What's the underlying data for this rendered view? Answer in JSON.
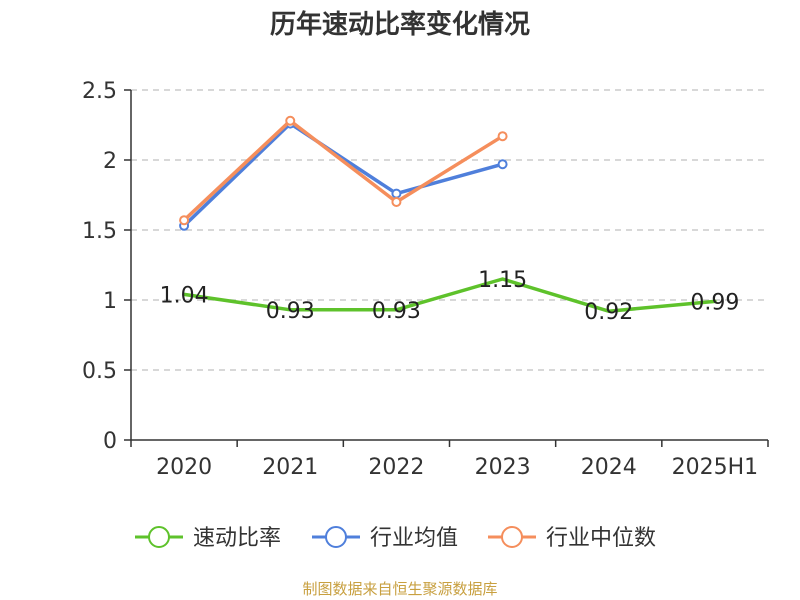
{
  "chart_data": {
    "type": "line",
    "title": "历年速动比率变化情况",
    "categories": [
      "2020",
      "2021",
      "2022",
      "2023",
      "2024",
      "2025H1"
    ],
    "ylim": [
      0,
      2.5
    ],
    "yticks": [
      "0",
      "0.5",
      "1",
      "1.5",
      "2",
      "2.5"
    ],
    "grid": true,
    "legend_position": "bottom",
    "series": [
      {
        "name": "速动比率",
        "color": "#5ec22b",
        "values": [
          1.04,
          0.93,
          0.93,
          1.15,
          0.92,
          0.99
        ],
        "labels": [
          "1.04",
          "0.93",
          "0.93",
          "1.15",
          "0.92",
          "0.99"
        ],
        "markers": false
      },
      {
        "name": "行业均值",
        "color": "#4f7fdb",
        "values": [
          1.53,
          2.26,
          1.76,
          1.97,
          null,
          null
        ],
        "markers": true
      },
      {
        "name": "行业中位数",
        "color": "#f58e5c",
        "values": [
          1.57,
          2.28,
          1.7,
          2.17,
          null,
          null
        ],
        "markers": true
      }
    ]
  },
  "source_note": "制图数据来自恒生聚源数据库"
}
